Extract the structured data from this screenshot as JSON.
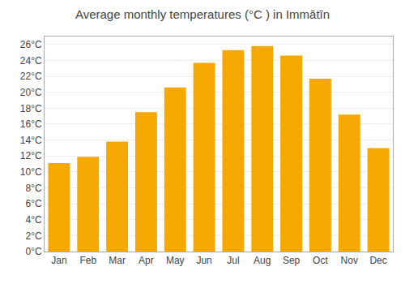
{
  "chart_data": {
    "type": "bar",
    "title": "Average monthly temperatures (°C ) in Immātīn",
    "categories": [
      "Jan",
      "Feb",
      "Mar",
      "Apr",
      "May",
      "Jun",
      "Jul",
      "Aug",
      "Sep",
      "Oct",
      "Nov",
      "Dec"
    ],
    "values": [
      11.1,
      11.9,
      13.8,
      17.5,
      20.6,
      23.7,
      25.3,
      25.8,
      24.6,
      21.7,
      17.2,
      13.0
    ],
    "color": "#F5A800",
    "ylim": [
      0,
      27
    ],
    "yticks": [
      {
        "value": 0,
        "label": "0°C"
      },
      {
        "value": 2,
        "label": "2°C"
      },
      {
        "value": 4,
        "label": "4°C"
      },
      {
        "value": 6,
        "label": "6°C"
      },
      {
        "value": 8,
        "label": "8°C"
      },
      {
        "value": 10,
        "label": "10°C"
      },
      {
        "value": 12,
        "label": "12°C"
      },
      {
        "value": 14,
        "label": "14°C"
      },
      {
        "value": 16,
        "label": "16°C"
      },
      {
        "value": 18,
        "label": "18°C"
      },
      {
        "value": 20,
        "label": "20°C"
      },
      {
        "value": 22,
        "label": "22°C"
      },
      {
        "value": 24,
        "label": "24°C"
      },
      {
        "value": 26,
        "label": "26°C"
      }
    ],
    "grid": true
  }
}
